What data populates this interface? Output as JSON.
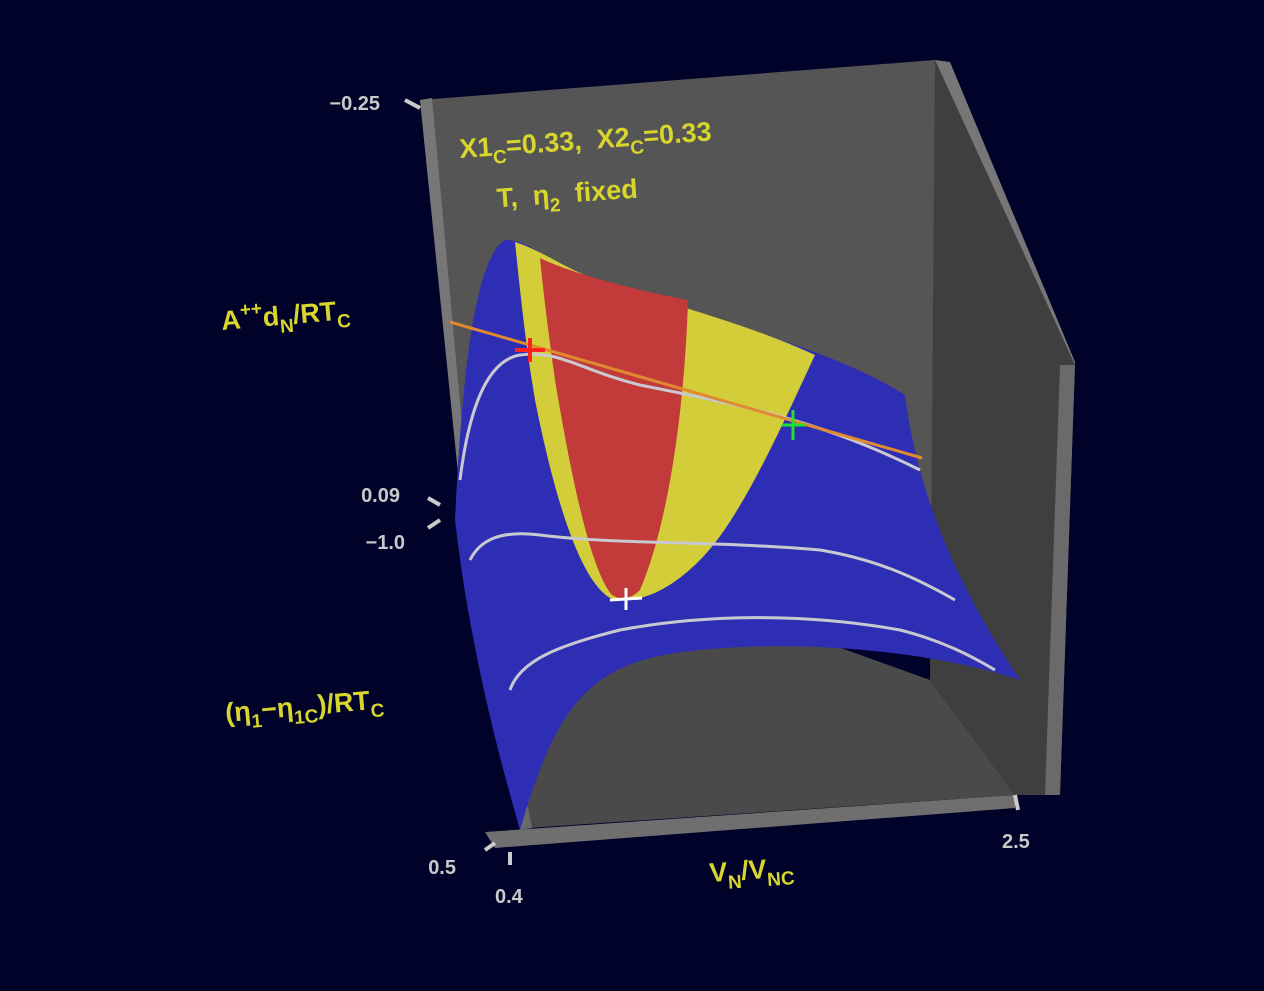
{
  "annotation": {
    "line1": [
      "X1",
      "C",
      "=0.33,  X2",
      "C",
      "=0.33"
    ],
    "line2": [
      "T,  η",
      "2",
      "  fixed"
    ]
  },
  "axes": {
    "vertical": {
      "label": [
        "A",
        "++",
        "d",
        "N",
        "/RT",
        "C"
      ],
      "ticks": [
        "−0.25",
        "0.09"
      ]
    },
    "depth": {
      "label": [
        "(η",
        "1",
        "−η",
        "1C",
        ")/RT",
        "C"
      ],
      "ticks": [
        "−1.0",
        "0.5"
      ]
    },
    "horizontal": {
      "label": [
        "V",
        "N",
        "/V",
        "NC"
      ],
      "ticks": [
        "0.4",
        "2.5"
      ]
    }
  }
}
